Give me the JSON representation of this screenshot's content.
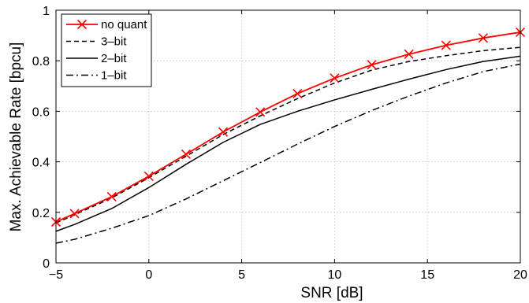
{
  "chart_data": {
    "type": "line",
    "title": "",
    "xlabel": "SNR [dB]",
    "ylabel": "Max. Achievable Rate [bpcu]",
    "xlim": [
      -5,
      20
    ],
    "ylim": [
      0,
      1
    ],
    "xticks": [
      -5,
      0,
      5,
      10,
      15,
      20
    ],
    "xtick_labels": [
      "−5",
      "0",
      "5",
      "10",
      "15",
      "20"
    ],
    "yticks": [
      0,
      0.2,
      0.4,
      0.6,
      0.8,
      1
    ],
    "ytick_labels": [
      "0",
      "0.2",
      "0.4",
      "0.6",
      "0.8",
      "1"
    ],
    "grid": true,
    "legend_position": "top-left",
    "x": [
      -5,
      -4,
      -2,
      0,
      2,
      4,
      6,
      8,
      10,
      12,
      14,
      16,
      18,
      20
    ],
    "series": [
      {
        "name": "no quant",
        "color": "#ff0000",
        "style": "solid",
        "marker": "x",
        "values": [
          0.162,
          0.195,
          0.262,
          0.343,
          0.43,
          0.518,
          0.597,
          0.67,
          0.731,
          0.784,
          0.826,
          0.861,
          0.89,
          0.913
        ]
      },
      {
        "name": "3–bit",
        "color": "#000000",
        "style": "dashed",
        "marker": "none",
        "values": [
          0.158,
          0.19,
          0.257,
          0.337,
          0.422,
          0.508,
          0.582,
          0.65,
          0.712,
          0.763,
          0.797,
          0.82,
          0.84,
          0.853
        ]
      },
      {
        "name": "2–bit",
        "color": "#000000",
        "style": "solid",
        "marker": "none",
        "values": [
          0.125,
          0.152,
          0.215,
          0.298,
          0.39,
          0.477,
          0.548,
          0.6,
          0.645,
          0.687,
          0.727,
          0.765,
          0.797,
          0.818
        ]
      },
      {
        "name": "1–bit",
        "color": "#000000",
        "style": "dashdot",
        "marker": "none",
        "values": [
          0.078,
          0.093,
          0.137,
          0.187,
          0.253,
          0.325,
          0.397,
          0.47,
          0.54,
          0.603,
          0.66,
          0.712,
          0.757,
          0.787
        ]
      }
    ]
  }
}
